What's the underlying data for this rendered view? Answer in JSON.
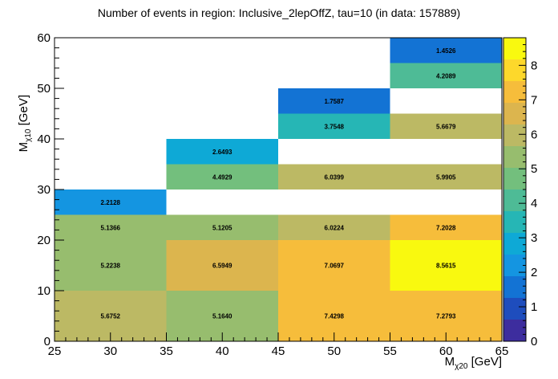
{
  "chart_data": {
    "type": "heatmap",
    "title": "Number of events in region: Inclusive_2lepOffZ, tau=10 (in data: 157889)",
    "xlabel": {
      "main": "M",
      "sub": "χ20",
      "unit": " [GeV]"
    },
    "ylabel": {
      "main": "M",
      "sub": "χ10",
      "unit": " [GeV]"
    },
    "xlim": [
      25,
      65
    ],
    "ylim": [
      0,
      60
    ],
    "zlim": [
      0,
      8.8
    ],
    "x_ticks": [
      "25",
      "30",
      "35",
      "40",
      "45",
      "50",
      "55",
      "60",
      "65"
    ],
    "y_ticks": [
      "0",
      "10",
      "20",
      "30",
      "40",
      "50",
      "60"
    ],
    "z_ticks": [
      "0",
      "1",
      "2",
      "3",
      "4",
      "5",
      "6",
      "7",
      "8"
    ],
    "grid": false,
    "cells": [
      {
        "x": [
          25,
          35
        ],
        "y": [
          0,
          10
        ],
        "value": 5.6752,
        "label": "5.6752"
      },
      {
        "x": [
          35,
          45
        ],
        "y": [
          0,
          10
        ],
        "value": 5.164,
        "label": "5.1640"
      },
      {
        "x": [
          45,
          55
        ],
        "y": [
          0,
          10
        ],
        "value": 7.4298,
        "label": "7.4298"
      },
      {
        "x": [
          55,
          65
        ],
        "y": [
          0,
          10
        ],
        "value": 7.2793,
        "label": "7.2793"
      },
      {
        "x": [
          25,
          35
        ],
        "y": [
          10,
          20
        ],
        "value": 5.2238,
        "label": "5.2238"
      },
      {
        "x": [
          35,
          45
        ],
        "y": [
          10,
          20
        ],
        "value": 6.5949,
        "label": "6.5949"
      },
      {
        "x": [
          45,
          55
        ],
        "y": [
          10,
          20
        ],
        "value": 7.0697,
        "label": "7.0697"
      },
      {
        "x": [
          55,
          65
        ],
        "y": [
          10,
          20
        ],
        "value": 8.5615,
        "label": "8.5615"
      },
      {
        "x": [
          25,
          35
        ],
        "y": [
          20,
          25
        ],
        "value": 5.1366,
        "label": "5.1366"
      },
      {
        "x": [
          35,
          45
        ],
        "y": [
          20,
          25
        ],
        "value": 5.1205,
        "label": "5.1205"
      },
      {
        "x": [
          45,
          55
        ],
        "y": [
          20,
          25
        ],
        "value": 6.0224,
        "label": "6.0224"
      },
      {
        "x": [
          55,
          65
        ],
        "y": [
          20,
          25
        ],
        "value": 7.2028,
        "label": "7.2028"
      },
      {
        "x": [
          25,
          35
        ],
        "y": [
          25,
          30
        ],
        "value": 2.2128,
        "label": "2.2128"
      },
      {
        "x": [
          35,
          45
        ],
        "y": [
          30,
          35
        ],
        "value": 4.4929,
        "label": "4.4929"
      },
      {
        "x": [
          45,
          55
        ],
        "y": [
          30,
          35
        ],
        "value": 6.0399,
        "label": "6.0399"
      },
      {
        "x": [
          55,
          65
        ],
        "y": [
          30,
          35
        ],
        "value": 5.9905,
        "label": "5.9905"
      },
      {
        "x": [
          35,
          45
        ],
        "y": [
          35,
          40
        ],
        "value": 2.6493,
        "label": "2.6493"
      },
      {
        "x": [
          45,
          55
        ],
        "y": [
          40,
          45
        ],
        "value": 3.7548,
        "label": "3.7548"
      },
      {
        "x": [
          55,
          65
        ],
        "y": [
          40,
          45
        ],
        "value": 5.6679,
        "label": "5.6679"
      },
      {
        "x": [
          45,
          55
        ],
        "y": [
          45,
          50
        ],
        "value": 1.7587,
        "label": "1.7587"
      },
      {
        "x": [
          55,
          65
        ],
        "y": [
          50,
          55
        ],
        "value": 4.2089,
        "label": "4.2089"
      },
      {
        "x": [
          55,
          65
        ],
        "y": [
          55,
          60
        ],
        "value": 1.4526,
        "label": "1.4526"
      }
    ],
    "colormap": [
      "#3d2d9e",
      "#1e4dbd",
      "#1373d4",
      "#1495e1",
      "#0ea9d6",
      "#26b6b5",
      "#4ebb96",
      "#73bf7d",
      "#97bd6e",
      "#bcb964",
      "#dcb54e",
      "#f6bd3b",
      "#fdd82b",
      "#f9f90f"
    ]
  }
}
